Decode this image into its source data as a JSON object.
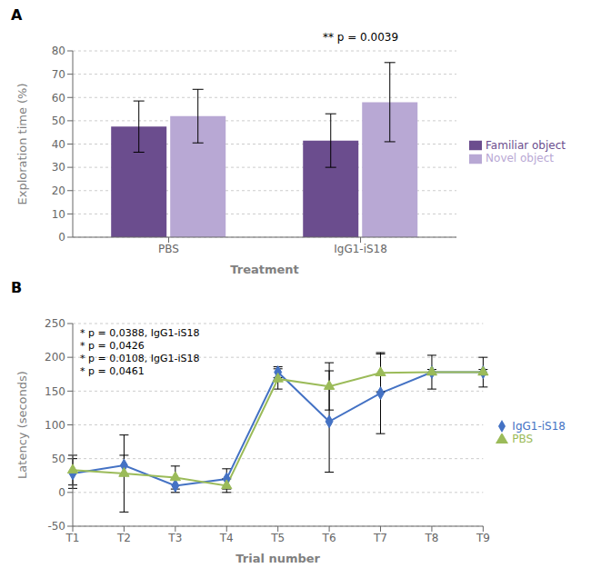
{
  "chart_data": [
    {
      "type": "bar",
      "title": "A",
      "categories": [
        "PBS",
        "IgG1-iS18"
      ],
      "series": [
        {
          "name": "Familiar object",
          "color": "#6b4d8e",
          "values": [
            47.5,
            41.5
          ],
          "errors": [
            11.0,
            11.5
          ]
        },
        {
          "name": "Novel object",
          "color": "#b8a8d4",
          "values": [
            52.0,
            58.0
          ],
          "errors": [
            11.5,
            17.0
          ]
        }
      ],
      "xlabel": "Treatment",
      "ylabel": "Exploration time (%)",
      "ylim": [
        0,
        80
      ],
      "yticks": [
        0,
        10,
        20,
        30,
        40,
        50,
        60,
        70,
        80
      ],
      "grid": true,
      "legend": "right",
      "annotations": [
        "** p = 0.0039"
      ]
    },
    {
      "type": "line",
      "title": "B",
      "categories": [
        "T1",
        "T2",
        "T3",
        "T4",
        "T5",
        "T6",
        "T7",
        "T8",
        "T9"
      ],
      "series": [
        {
          "name": "IgG1-iS18",
          "color": "#4472c4",
          "marker": "diamond",
          "values": [
            28,
            40,
            10,
            20,
            178,
            105,
            147,
            178,
            178
          ],
          "errors": [
            22,
            15,
            10,
            15,
            8,
            75,
            60,
            25,
            22
          ]
        },
        {
          "name": "PBS",
          "color": "#9bbb59",
          "marker": "triangle",
          "values": [
            33,
            28,
            22,
            10,
            168,
            157,
            177,
            178,
            178
          ],
          "errors": [
            22,
            57,
            17,
            10,
            15,
            35,
            28,
            4,
            4
          ]
        }
      ],
      "xlabel": "Trial number",
      "ylabel": "Latency (seconds)",
      "ylim": [
        -50,
        250
      ],
      "yticks": [
        -50,
        0,
        50,
        100,
        150,
        200,
        250
      ],
      "grid": true,
      "legend": "right",
      "annotations": [
        "* p = 0,0388, IgG1-iS18",
        "* p = 0,0426",
        "* p = 0.0108, IgG1-iS18",
        "* p = 0,0461"
      ]
    }
  ]
}
